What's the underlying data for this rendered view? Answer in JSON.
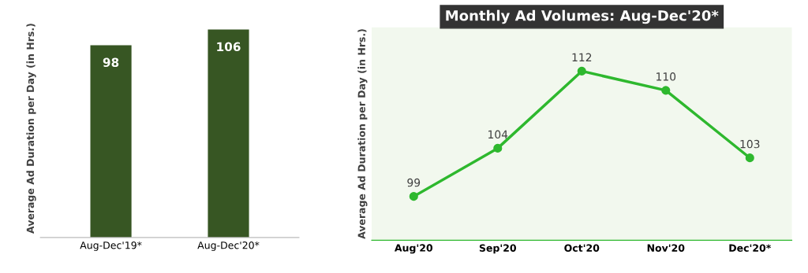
{
  "chart_data": [
    {
      "type": "bar",
      "categories": [
        "Aug-Dec'19*",
        "Aug-Dec'20*"
      ],
      "values": [
        98,
        106
      ],
      "color": "#375623",
      "ylabel": "Average Ad Duration per Day (in Hrs.)",
      "data_labels": true,
      "tick_labels": "x",
      "grid": false,
      "legend": false
    },
    {
      "type": "line",
      "title": "Monthly Ad Volumes: Aug-Dec'20*",
      "categories": [
        "Aug'20",
        "Sep'20",
        "Oct'20",
        "Nov'20",
        "Dec'20*"
      ],
      "series": [
        {
          "color": "#2eb82e",
          "values": [
            99,
            104,
            112,
            110,
            103
          ]
        }
      ],
      "ylabel": "Average Ad Duration per Day (in Hrs.)",
      "data_labels": true,
      "marker": "circle",
      "line_style": "solid",
      "tick_labels": "x",
      "grid": false,
      "legend": false
    }
  ]
}
